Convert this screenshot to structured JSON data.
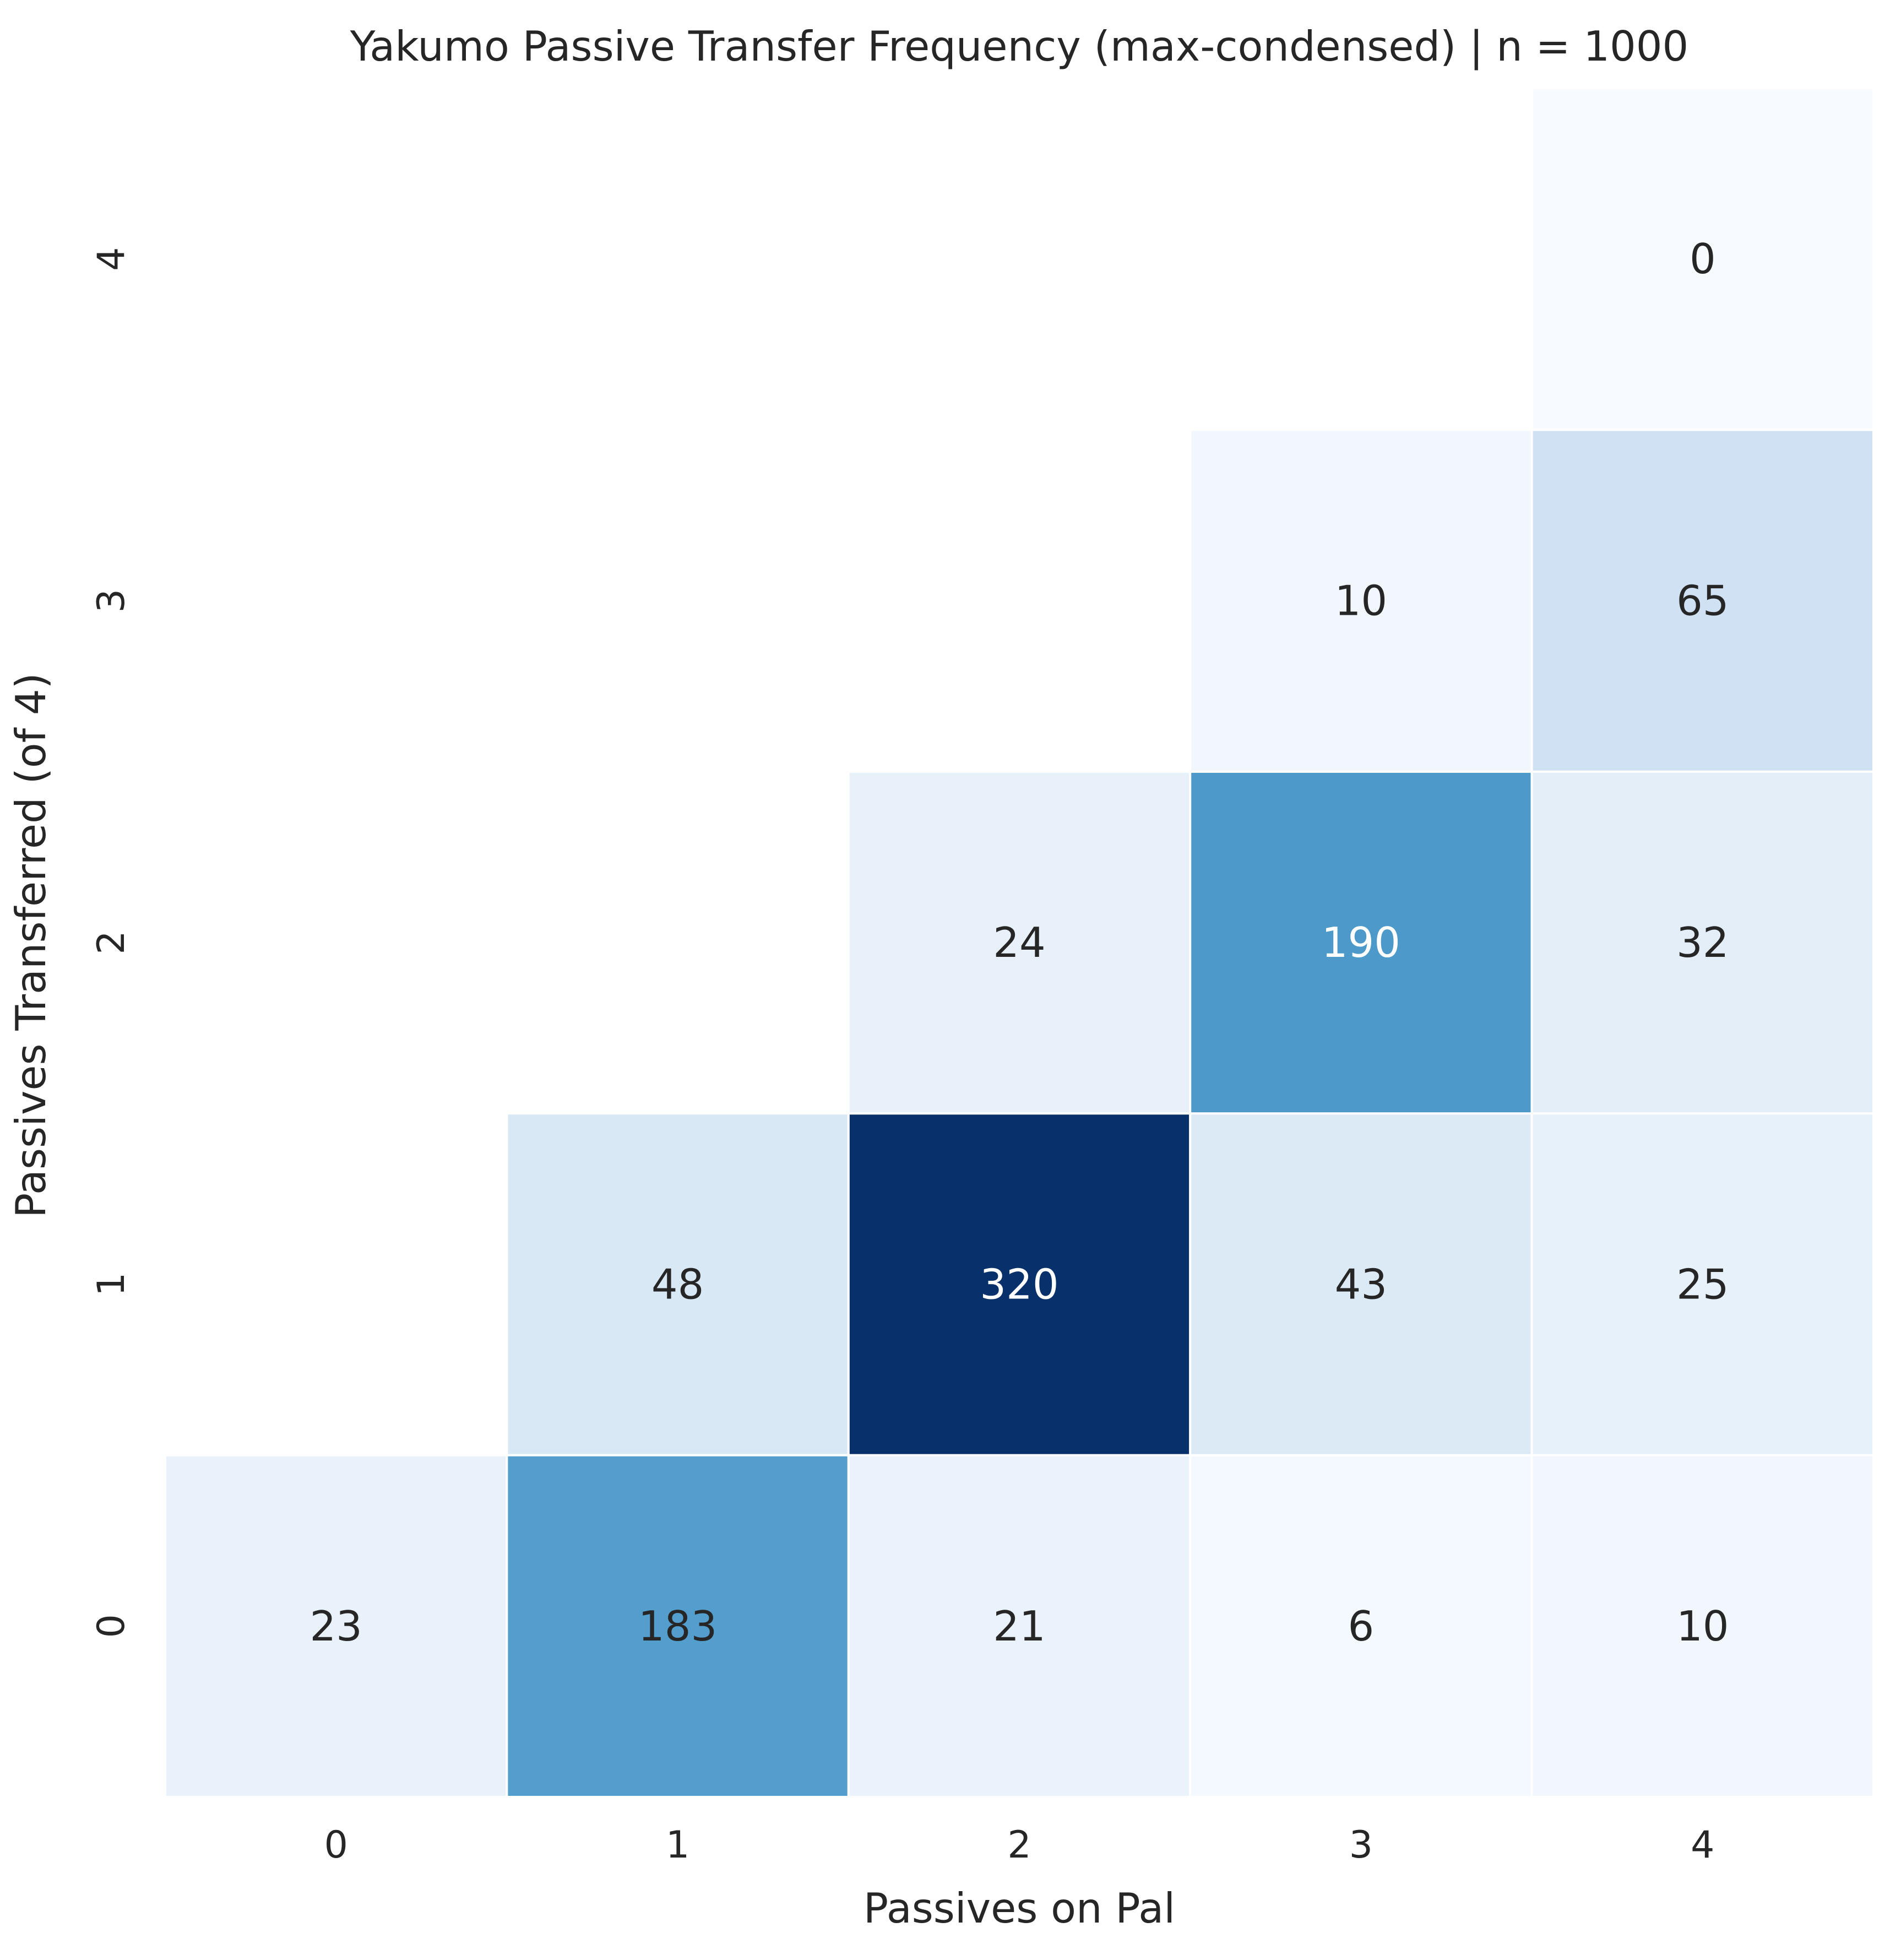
{
  "chart_data": {
    "type": "heatmap",
    "title": "Yakumo Passive Transfer Frequency (max-condensed) | n = 1000",
    "xlabel": "Passives on Pal",
    "ylabel": "Passives Transferred (of 4)",
    "x_categories": [
      "0",
      "1",
      "2",
      "3",
      "4"
    ],
    "y_categories": [
      "0",
      "1",
      "2",
      "3",
      "4"
    ],
    "y_order": "bottom-to-top",
    "colormap": "Blues",
    "vmin": 0,
    "vmax": 320,
    "colorbar": false,
    "grid": false,
    "cells": [
      {
        "x": "0",
        "y": "0",
        "value": 23
      },
      {
        "x": "1",
        "y": "0",
        "value": 183
      },
      {
        "x": "2",
        "y": "0",
        "value": 21
      },
      {
        "x": "3",
        "y": "0",
        "value": 6
      },
      {
        "x": "4",
        "y": "0",
        "value": 10
      },
      {
        "x": "1",
        "y": "1",
        "value": 48
      },
      {
        "x": "2",
        "y": "1",
        "value": 320
      },
      {
        "x": "3",
        "y": "1",
        "value": 43
      },
      {
        "x": "4",
        "y": "1",
        "value": 25
      },
      {
        "x": "2",
        "y": "2",
        "value": 24
      },
      {
        "x": "3",
        "y": "2",
        "value": 190
      },
      {
        "x": "4",
        "y": "2",
        "value": 32
      },
      {
        "x": "3",
        "y": "3",
        "value": 10
      },
      {
        "x": "4",
        "y": "3",
        "value": 65
      },
      {
        "x": "4",
        "y": "4",
        "value": 0
      }
    ]
  }
}
